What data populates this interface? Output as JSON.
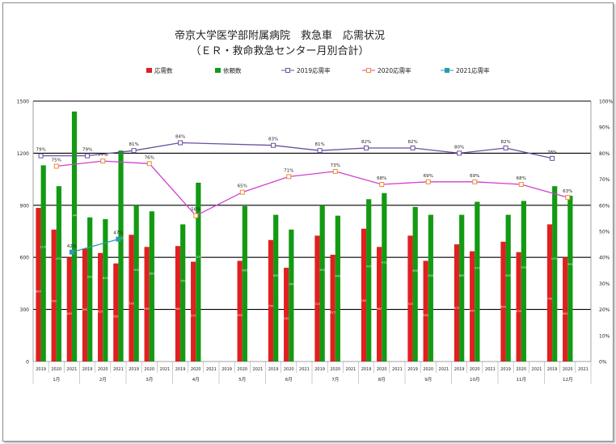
{
  "chart_data": {
    "type": "bar+line",
    "title": "帝京大学医学部附属病院　救急車　応需状況",
    "subtitle": "（ＥＲ・救命救急センター月別合計）",
    "y_left": {
      "ticks": [
        "0",
        "300",
        "600",
        "900",
        "1200",
        "1500"
      ],
      "lim": [
        0,
        1500
      ]
    },
    "y_right": {
      "ticks": [
        "0%",
        "10%",
        "20%",
        "30%",
        "40%",
        "50%",
        "60%",
        "70%",
        "80%",
        "90%",
        "100%"
      ],
      "lim": [
        0,
        100
      ]
    },
    "grid": "horizontal major lines",
    "legend_position": "top",
    "months": [
      "1月",
      "2月",
      "3月",
      "4月",
      "5月",
      "6月",
      "7月",
      "8月",
      "9月",
      "10月",
      "11月",
      "12月"
    ],
    "years": [
      "2019",
      "2020",
      "2021"
    ],
    "series": [
      {
        "name": "応需数",
        "kind": "bar",
        "color": "#e02020",
        "values": [
          [
            885,
            760,
            600
          ],
          [
            650,
            625,
            565
          ],
          [
            730,
            660,
            null
          ],
          [
            665,
            575,
            null
          ],
          [
            null,
            580,
            null
          ],
          [
            700,
            540,
            null
          ],
          [
            725,
            615,
            null
          ],
          [
            765,
            660,
            null
          ],
          [
            725,
            580,
            null
          ],
          [
            675,
            635,
            null
          ],
          [
            690,
            630,
            null
          ],
          [
            790,
            600,
            null
          ]
        ]
      },
      {
        "name": "依頼数",
        "kind": "bar",
        "color": "#139a13",
        "values": [
          [
            1130,
            1010,
            1440
          ],
          [
            830,
            820,
            1215
          ],
          [
            900,
            865,
            null
          ],
          [
            790,
            1030,
            null
          ],
          [
            null,
            895,
            null
          ],
          [
            845,
            760,
            null
          ],
          [
            900,
            840,
            null
          ],
          [
            935,
            970,
            null
          ],
          [
            890,
            845,
            null
          ],
          [
            845,
            920,
            null
          ],
          [
            845,
            925,
            null
          ],
          [
            1010,
            955,
            null
          ]
        ]
      },
      {
        "name": "2019応需率",
        "kind": "line",
        "color": "#6b4fa0",
        "marker": "square-hollow",
        "values": [
          79,
          79,
          81,
          84,
          null,
          83,
          81,
          82,
          82,
          80,
          82,
          78
        ]
      },
      {
        "name": "2020応需率",
        "kind": "line",
        "color": "#f08a30",
        "marker": "square-hollow",
        "line_color": "#d040d0",
        "values": [
          75,
          77,
          76,
          56,
          65,
          71,
          73,
          68,
          69,
          69,
          68,
          63
        ]
      },
      {
        "name": "2021応需率",
        "kind": "line",
        "color": "#2a9bb0",
        "marker": "square-filled",
        "values": [
          42,
          47,
          null,
          null,
          null,
          null,
          null,
          null,
          null,
          null,
          null,
          null
        ]
      }
    ],
    "point_labels": {
      "2019": [
        "79%",
        "79%",
        "81%",
        "84%",
        "",
        "83%",
        "81%",
        "82%",
        "82%",
        "80%",
        "82%",
        "78%"
      ],
      "2020": [
        "75%",
        "77%",
        "76%",
        "56%",
        "65%",
        "71%",
        "73%",
        "68%",
        "69%",
        "69%",
        "68%",
        "63%"
      ],
      "2021": [
        "42%",
        "47%",
        "",
        "",
        "",
        "",
        "",
        "",
        "",
        "",
        "",
        ""
      ]
    }
  }
}
